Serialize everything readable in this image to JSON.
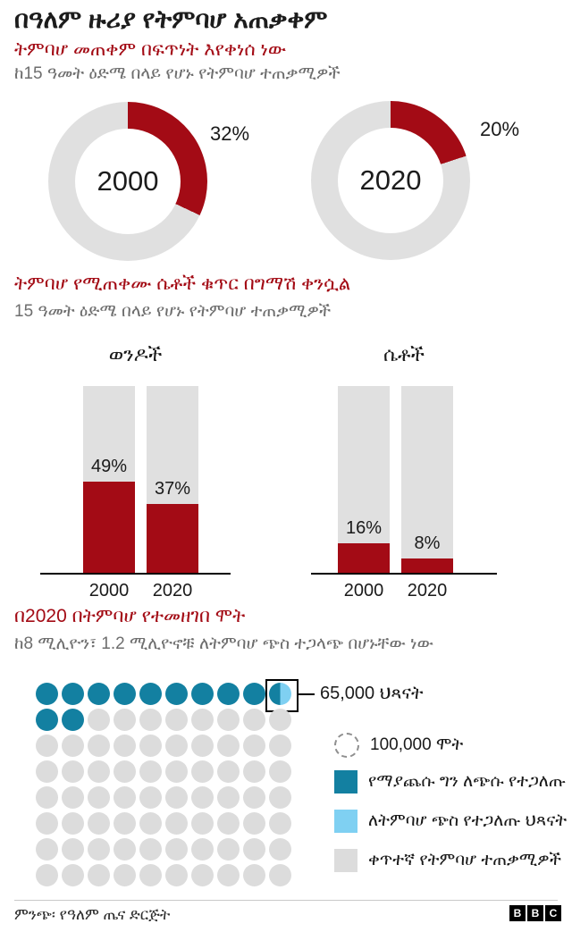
{
  "header": {
    "title": "በዓለም ዙሪያ የትምባሆ አጠቃቀም"
  },
  "colors": {
    "red": "#a30b15",
    "teal": "#1380a1",
    "light_blue": "#7fd0f2",
    "gray_fill": "#e0e0e0",
    "dot_gray": "#dcdcdc",
    "text_dark": "#1a1a1a",
    "text_gray": "#6e6e6e"
  },
  "chart_data": [
    {
      "type": "pie",
      "subtype": "donut-pair",
      "title": "ትምባሆ መጠቀም በፍጥነት እየቀነሰ ነው",
      "note": "ከ15 ዓመት ዕድሜ በላይ የሆኑ የትምባሆ ተጠቃሚዎች",
      "units": "%",
      "donuts": [
        {
          "center_label": "2000",
          "value": 32,
          "value_label": "32%"
        },
        {
          "center_label": "2020",
          "value": 20,
          "value_label": "20%"
        }
      ],
      "colors": {
        "filled": "#a30b15",
        "rest": "#e0e0e0"
      }
    },
    {
      "type": "bar",
      "title": "ትምባሆ የሚጠቀሙ ሴቶች ቁጥር በግማሽ ቀንሷል",
      "note": "15 ዓመት ዕድሜ በላይ የሆኑ የትምባሆ ተጠቃሚዎች",
      "categories": [
        "2000",
        "2020"
      ],
      "groups": [
        {
          "name": "ወንዶች",
          "values": [
            49,
            37
          ],
          "labels": [
            "49%",
            "37%"
          ]
        },
        {
          "name": "ሴቶች",
          "values": [
            16,
            8
          ],
          "labels": [
            "16%",
            "8%"
          ]
        }
      ],
      "ylim": [
        0,
        100
      ],
      "grid": false
    },
    {
      "type": "waffle",
      "title": "በ2020 በትምባሆ የተመዘገበ ሞት",
      "note": "ከ8 ሚሊዮን፣ 1.2 ሚሊዮኖቹ ለትምባሆ ጭስ ተጋላጭ በሆኑቸው ነው",
      "dot_value": 100000,
      "rows": 8,
      "cols": 10,
      "total_dots": 80,
      "total_deaths": 8000000,
      "secondhand_dots": 12,
      "secondhand_deaths": 1200000,
      "split_dot": {
        "index": 9,
        "left": "secondhand",
        "right": "children",
        "boxed": true
      },
      "annotation": {
        "value": 65000,
        "label": "65,000 ህጻናት"
      },
      "legend": [
        {
          "swatch": "dashed-circle",
          "label": "100,000 ሞት"
        },
        {
          "swatch": "secondhand",
          "label": "የማያጨሱ ግን ለጭሱ የተጋለጡ"
        },
        {
          "swatch": "children",
          "label": "ለትምባሆ ጭስ የተጋለጡ ህጻናት"
        },
        {
          "swatch": "smokers",
          "label": "ቀጥተኛ የትምባሆ ተጠቃሚዎች"
        }
      ],
      "legend_position": "right"
    }
  ],
  "footer": {
    "source": "ምንጭ፡ የዓለም ጤና ድርጅት",
    "logo_letters": [
      "B",
      "B",
      "C"
    ]
  }
}
